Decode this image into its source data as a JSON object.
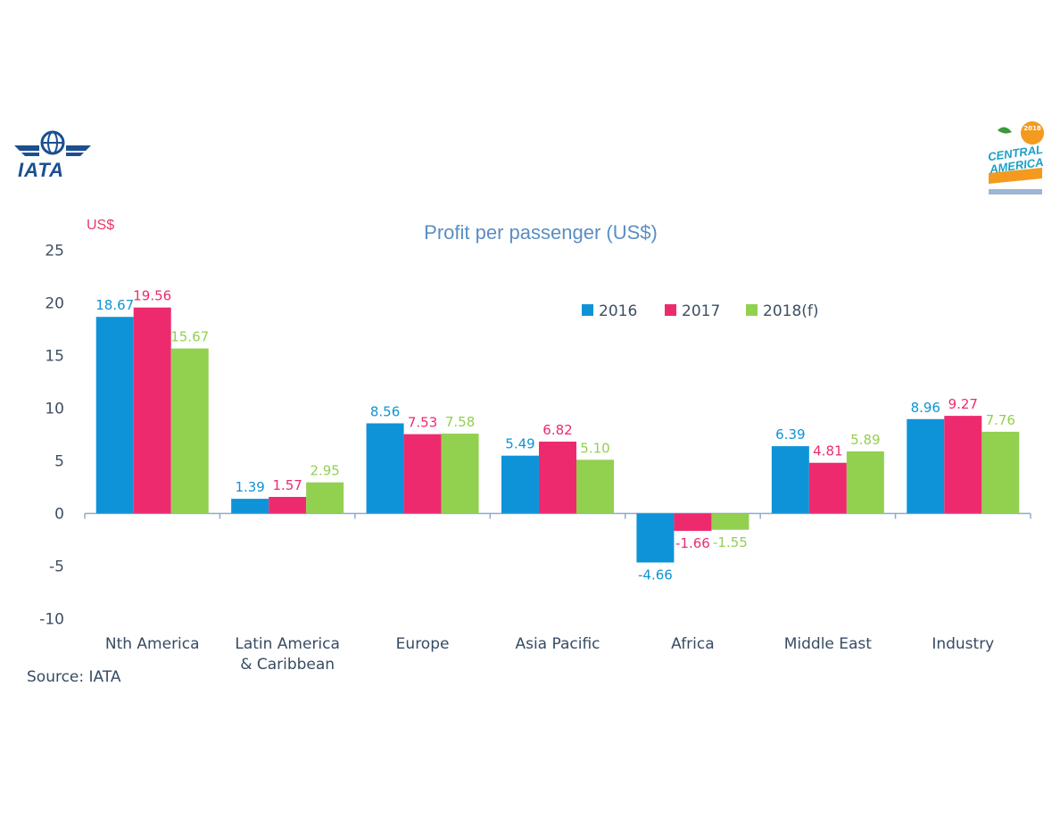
{
  "logos": {
    "iata": "IATA",
    "central_america_line1": "CENTRAL",
    "central_america_line2": "AMERICA",
    "central_america_year": "2018"
  },
  "chart_data": {
    "type": "bar",
    "title": "Profit per passenger (US$)",
    "ylabel": "US$",
    "xlabel": "",
    "ylim": [
      -10,
      25
    ],
    "yticks": [
      -10,
      -5,
      0,
      5,
      10,
      15,
      20,
      25
    ],
    "grid": false,
    "legend_position": "top-right",
    "source": "Source: IATA",
    "categories": [
      [
        "Nth America"
      ],
      [
        "Latin America",
        "& Caribbean"
      ],
      [
        "Europe"
      ],
      [
        "Asia Pacific"
      ],
      [
        "Africa"
      ],
      [
        "Middle East"
      ],
      [
        "Industry"
      ]
    ],
    "series": [
      {
        "name": "2016",
        "color": "#0f93d8",
        "values": [
          18.67,
          1.39,
          8.56,
          5.49,
          -4.66,
          6.39,
          8.96
        ],
        "labels": [
          "18.67",
          "1.39",
          "8.56",
          "5.49",
          "-4.66",
          "6.39",
          "8.96"
        ]
      },
      {
        "name": "2017",
        "color": "#ee2a6f",
        "values": [
          19.56,
          1.57,
          7.53,
          6.82,
          -1.66,
          4.81,
          9.27
        ],
        "labels": [
          "19.56",
          "1.57",
          "7.53",
          "6.82",
          "-1.66",
          "4.81",
          "9.27"
        ]
      },
      {
        "name": "2018(f)",
        "color": "#92d050",
        "values": [
          15.67,
          2.95,
          7.58,
          5.1,
          -1.55,
          5.89,
          7.76
        ],
        "labels": [
          "15.67",
          "2.95",
          "7.58",
          "5.10",
          "-1.55",
          "5.89",
          "7.76"
        ]
      }
    ],
    "colors": {
      "title": "#5b8ec3",
      "axis": "#8eaad0",
      "tick_label": "#3f4f63",
      "ylabel": "#e53a6a",
      "category_label": "#374b63",
      "source": "#374b63"
    }
  }
}
